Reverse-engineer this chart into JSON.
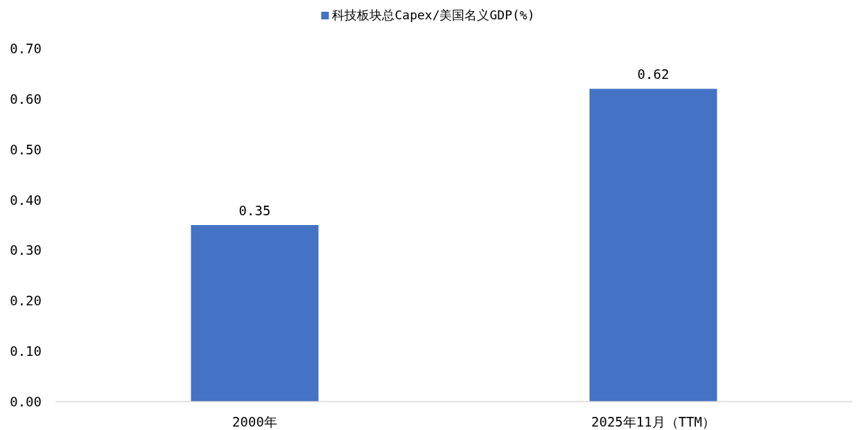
{
  "chart_data": {
    "type": "bar",
    "categories": [
      "2000年",
      "2025年11月（TTM）"
    ],
    "series": [
      {
        "name": "科技板块总Capex/美国名义GDP(%)",
        "color": "#4472c4",
        "values": [
          0.35,
          0.62
        ]
      }
    ],
    "ylim": [
      0,
      0.7
    ],
    "yticks": [
      {
        "value": 0,
        "label": "0.00"
      },
      {
        "value": 0.1,
        "label": "0.10"
      },
      {
        "value": 0.2,
        "label": "0.20"
      },
      {
        "value": 0.3,
        "label": "0.30"
      },
      {
        "value": 0.4,
        "label": "0.40"
      },
      {
        "value": 0.5,
        "label": "0.50"
      },
      {
        "value": 0.6,
        "label": "0.60"
      },
      {
        "value": 0.7,
        "label": "0.70"
      }
    ],
    "data_labels": true,
    "legend": "top"
  }
}
